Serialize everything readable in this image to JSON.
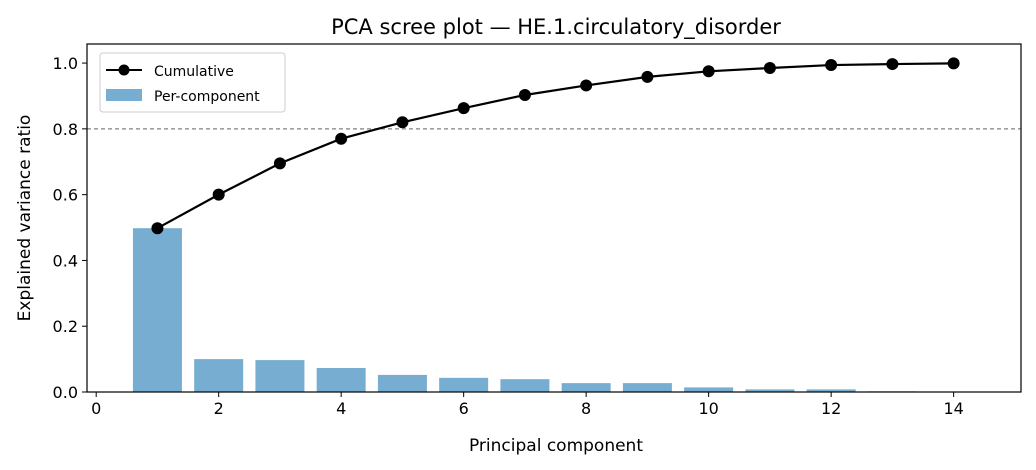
{
  "chart_data": {
    "type": "bar",
    "title": "PCA scree plot — HE.1.circulatory_disorder",
    "xlabel": "Principal component",
    "ylabel": "Explained variance ratio",
    "xlim": [
      -0.15,
      15.1
    ],
    "ylim": [
      0,
      1.058
    ],
    "xticks": [
      0,
      2,
      4,
      6,
      8,
      10,
      12,
      14
    ],
    "yticks": [
      0.0,
      0.2,
      0.4,
      0.6,
      0.8,
      1.0
    ],
    "x": [
      1,
      2,
      3,
      4,
      5,
      6,
      7,
      8,
      9,
      10,
      11,
      12,
      13,
      14
    ],
    "series": [
      {
        "name": "Cumulative",
        "kind": "line",
        "color": "#000000",
        "values": [
          0.498,
          0.6,
          0.695,
          0.77,
          0.82,
          0.863,
          0.903,
          0.932,
          0.958,
          0.975,
          0.985,
          0.994,
          0.997,
          0.999
        ]
      },
      {
        "name": "Per-component",
        "kind": "bar",
        "color": "#78add2",
        "values": [
          0.498,
          0.1,
          0.097,
          0.073,
          0.052,
          0.043,
          0.039,
          0.027,
          0.027,
          0.014,
          0.008,
          0.008,
          0.002,
          0.001
        ]
      }
    ],
    "threshold": {
      "value": 0.8,
      "color": "#808080",
      "style": "dashed"
    },
    "legend": "top-left",
    "grid": false
  }
}
